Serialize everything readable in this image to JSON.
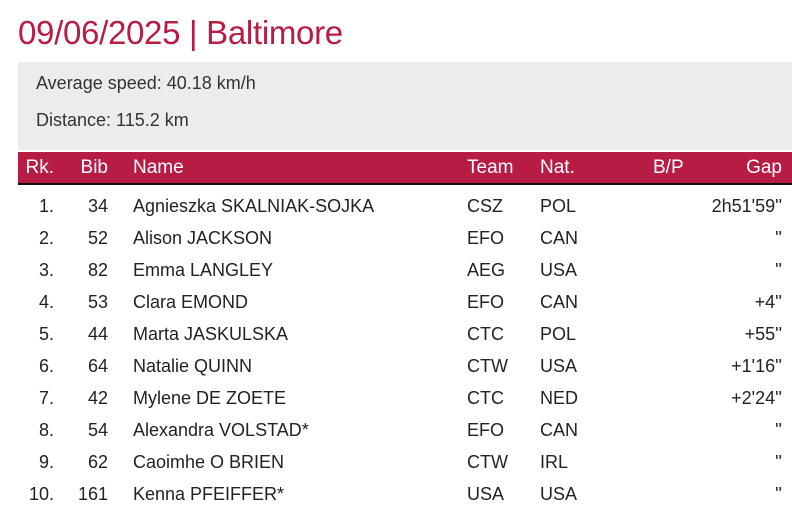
{
  "header": {
    "title": "09/06/2025 | Baltimore"
  },
  "info": [
    "Average speed: 40.18 km/h",
    "Distance: 115.2 km"
  ],
  "table": {
    "columns": [
      "Rk.",
      "Bib",
      "Name",
      "Team",
      "Nat.",
      "B/P",
      "Gap"
    ],
    "rows": [
      [
        "1.",
        "34",
        "Agnieszka SKALNIAK-SOJKA",
        "CSZ",
        "POL",
        "",
        "2h51'59''"
      ],
      [
        "2.",
        "52",
        "Alison JACKSON",
        "EFO",
        "CAN",
        "",
        "''"
      ],
      [
        "3.",
        "82",
        "Emma LANGLEY",
        "AEG",
        "USA",
        "",
        "''"
      ],
      [
        "4.",
        "53",
        "Clara EMOND",
        "EFO",
        "CAN",
        "",
        "+4''"
      ],
      [
        "5.",
        "44",
        "Marta JASKULSKA",
        "CTC",
        "POL",
        "",
        "+55''"
      ],
      [
        "6.",
        "64",
        "Natalie QUINN",
        "CTW",
        "USA",
        "",
        "+1'16''"
      ],
      [
        "7.",
        "42",
        "Mylene DE ZOETE",
        "CTC",
        "NED",
        "",
        "+2'24''"
      ],
      [
        "8.",
        "54",
        "Alexandra VOLSTAD*",
        "EFO",
        "CAN",
        "",
        "''"
      ],
      [
        "9.",
        "62",
        "Caoimhe O BRIEN",
        "CTW",
        "IRL",
        "",
        "''"
      ],
      [
        "10.",
        "161",
        "Kenna PFEIFFER*",
        "USA",
        "USA",
        "",
        "''"
      ]
    ]
  }
}
